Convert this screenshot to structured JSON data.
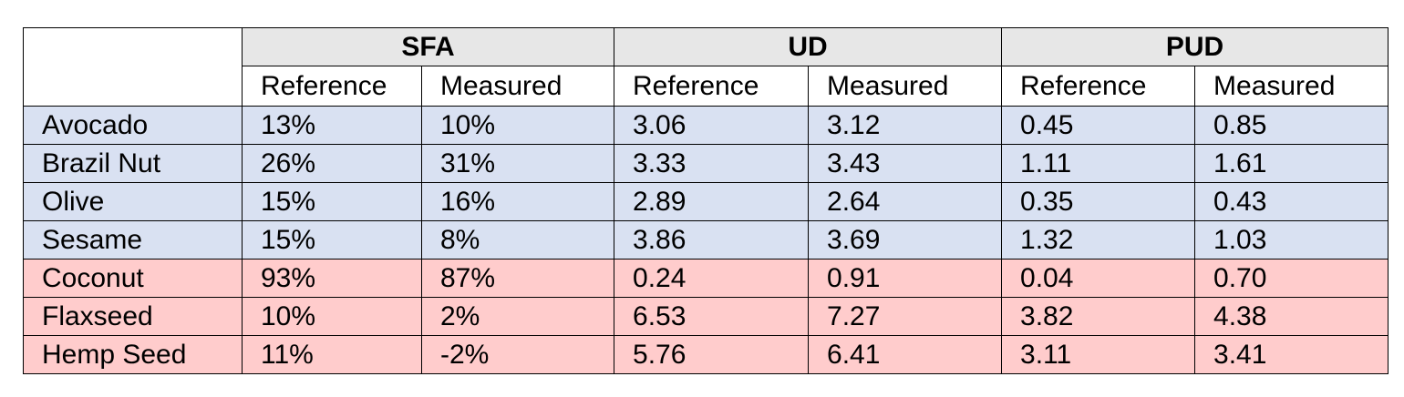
{
  "table": {
    "groups": [
      "SFA",
      "UD",
      "PUD"
    ],
    "subheaders": [
      "Reference",
      "Measured",
      "Reference",
      "Measured",
      "Reference",
      "Measured"
    ],
    "rows": [
      {
        "label": "Avocado",
        "cells": [
          "13%",
          "10%",
          "3.06",
          "3.12",
          "0.45",
          "0.85"
        ]
      },
      {
        "label": "Brazil Nut",
        "cells": [
          "26%",
          "31%",
          "3.33",
          "3.43",
          "1.11",
          "1.61"
        ]
      },
      {
        "label": "Olive",
        "cells": [
          "15%",
          "16%",
          "2.89",
          "2.64",
          "0.35",
          "0.43"
        ]
      },
      {
        "label": "Sesame",
        "cells": [
          "15%",
          "8%",
          "3.86",
          "3.69",
          "1.32",
          "1.03"
        ]
      },
      {
        "label": "Coconut",
        "cells": [
          "93%",
          "87%",
          "0.24",
          "0.91",
          "0.04",
          "0.70"
        ]
      },
      {
        "label": "Flaxseed",
        "cells": [
          "10%",
          "2%",
          "6.53",
          "7.27",
          "3.82",
          "4.38"
        ]
      },
      {
        "label": "Hemp Seed",
        "cells": [
          "11%",
          "-2%",
          "5.76",
          "6.41",
          "3.11",
          "3.41"
        ]
      }
    ]
  }
}
